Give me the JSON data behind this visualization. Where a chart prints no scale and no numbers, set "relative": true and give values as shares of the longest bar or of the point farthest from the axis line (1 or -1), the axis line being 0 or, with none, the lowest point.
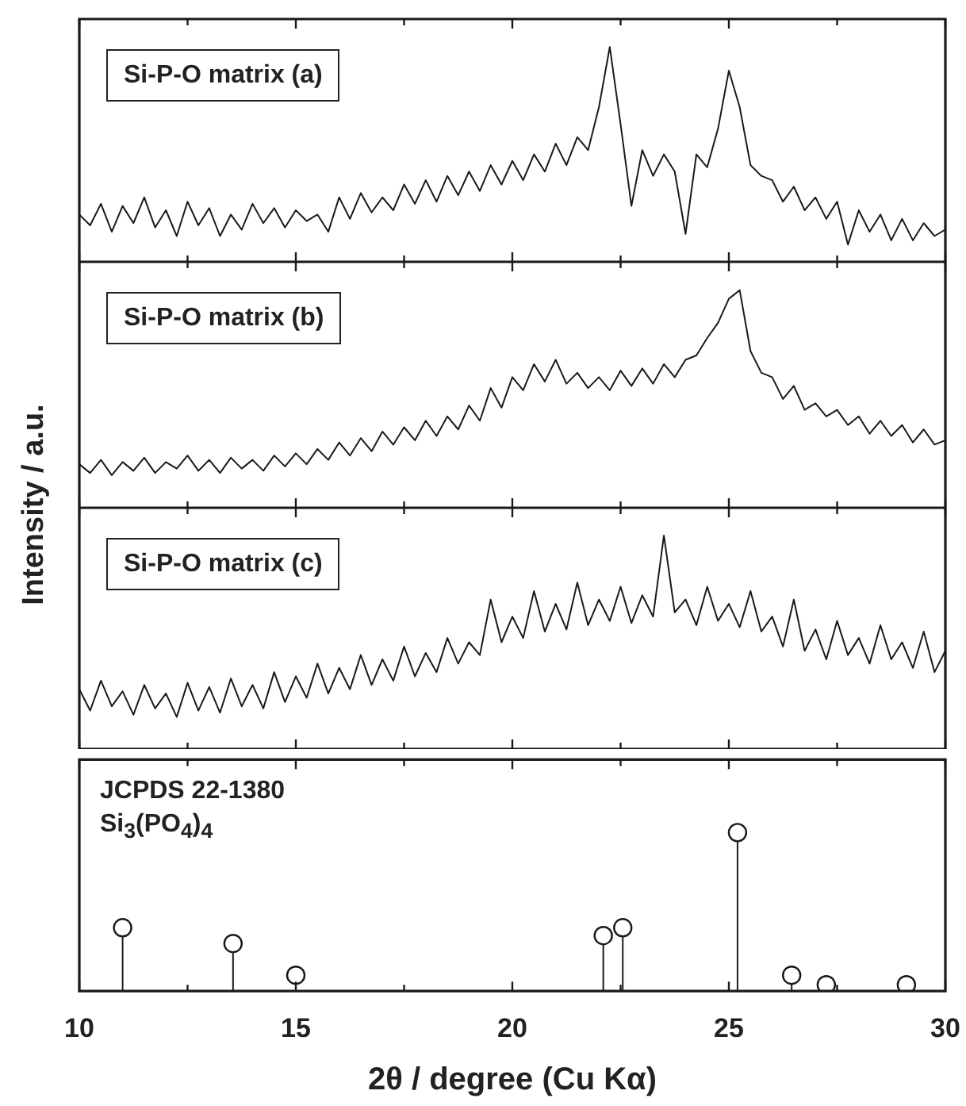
{
  "chart_data": [
    {
      "type": "line",
      "ylabel": "Intensity / a.u.",
      "annotations": [
        "Si-P-O matrix (a)"
      ],
      "relative": true,
      "tick_labels": false,
      "xlim": [
        10,
        30
      ],
      "xticks": [
        10,
        {
          "value": 12.5,
          "label": null
        },
        15,
        {
          "value": 17.5,
          "label": null
        },
        20,
        {
          "value": 22.5,
          "label": null
        },
        25,
        {
          "value": 27.5,
          "label": null
        },
        30
      ],
      "x": [
        10,
        10.25,
        10.5,
        10.75,
        11,
        11.25,
        11.5,
        11.75,
        12,
        12.25,
        12.5,
        12.75,
        13,
        13.25,
        13.5,
        13.75,
        14,
        14.25,
        14.5,
        14.75,
        15,
        15.25,
        15.5,
        15.75,
        16,
        16.25,
        16.5,
        16.75,
        17,
        17.25,
        17.5,
        17.75,
        18,
        18.25,
        18.5,
        18.75,
        19,
        19.25,
        19.5,
        19.75,
        20,
        20.25,
        20.5,
        20.75,
        21,
        21.25,
        21.5,
        21.75,
        22,
        22.25,
        22.5,
        22.75,
        23,
        23.25,
        23.5,
        23.75,
        24,
        24.25,
        24.5,
        24.75,
        25,
        25.25,
        25.5,
        25.75,
        26,
        26.25,
        26.5,
        26.75,
        27,
        27.25,
        27.5,
        27.75,
        28,
        28.25,
        28.5,
        28.75,
        29,
        29.25,
        29.5,
        29.75,
        30
      ],
      "series": [
        {
          "color": "#1a1a1a",
          "values": [
            0.22,
            0.17,
            0.27,
            0.14,
            0.26,
            0.18,
            0.3,
            0.16,
            0.24,
            0.12,
            0.28,
            0.17,
            0.25,
            0.12,
            0.22,
            0.15,
            0.27,
            0.18,
            0.25,
            0.16,
            0.24,
            0.19,
            0.22,
            0.14,
            0.3,
            0.2,
            0.32,
            0.23,
            0.3,
            0.24,
            0.36,
            0.27,
            0.38,
            0.28,
            0.4,
            0.31,
            0.42,
            0.33,
            0.45,
            0.36,
            0.47,
            0.38,
            0.5,
            0.42,
            0.55,
            0.45,
            0.58,
            0.52,
            0.72,
            1.0,
            0.64,
            0.26,
            0.52,
            0.4,
            0.5,
            0.42,
            0.13,
            0.5,
            0.44,
            0.62,
            0.89,
            0.72,
            0.45,
            0.4,
            0.38,
            0.28,
            0.35,
            0.24,
            0.3,
            0.2,
            0.28,
            0.08,
            0.24,
            0.14,
            0.22,
            0.1,
            0.2,
            0.1,
            0.18,
            0.12,
            0.15
          ]
        }
      ]
    },
    {
      "type": "line",
      "annotations": [
        "Si-P-O matrix (b)"
      ],
      "relative": true,
      "tick_labels": false,
      "xlim": [
        10,
        30
      ],
      "xticks": [
        10,
        {
          "value": 12.5,
          "label": null
        },
        15,
        {
          "value": 17.5,
          "label": null
        },
        20,
        {
          "value": 22.5,
          "label": null
        },
        25,
        {
          "value": 27.5,
          "label": null
        },
        30
      ],
      "x": [
        10,
        10.25,
        10.5,
        10.75,
        11,
        11.25,
        11.5,
        11.75,
        12,
        12.25,
        12.5,
        12.75,
        13,
        13.25,
        13.5,
        13.75,
        14,
        14.25,
        14.5,
        14.75,
        15,
        15.25,
        15.5,
        15.75,
        16,
        16.25,
        16.5,
        16.75,
        17,
        17.25,
        17.5,
        17.75,
        18,
        18.25,
        18.5,
        18.75,
        19,
        19.25,
        19.5,
        19.75,
        20,
        20.25,
        20.5,
        20.75,
        21,
        21.25,
        21.5,
        21.75,
        22,
        22.25,
        22.5,
        22.75,
        23,
        23.25,
        23.5,
        23.75,
        24,
        24.25,
        24.5,
        24.75,
        25,
        25.25,
        25.5,
        25.75,
        26,
        26.25,
        26.5,
        26.75,
        27,
        27.25,
        27.5,
        27.75,
        28,
        28.25,
        28.5,
        28.75,
        29,
        29.25,
        29.5,
        29.75,
        30
      ],
      "series": [
        {
          "color": "#1a1a1a",
          "values": [
            0.2,
            0.16,
            0.22,
            0.15,
            0.21,
            0.17,
            0.23,
            0.16,
            0.21,
            0.18,
            0.24,
            0.17,
            0.22,
            0.16,
            0.23,
            0.18,
            0.22,
            0.17,
            0.24,
            0.19,
            0.25,
            0.2,
            0.27,
            0.22,
            0.3,
            0.24,
            0.32,
            0.26,
            0.35,
            0.29,
            0.37,
            0.31,
            0.4,
            0.33,
            0.42,
            0.36,
            0.47,
            0.4,
            0.55,
            0.46,
            0.6,
            0.54,
            0.66,
            0.58,
            0.68,
            0.57,
            0.62,
            0.55,
            0.6,
            0.54,
            0.63,
            0.56,
            0.64,
            0.57,
            0.66,
            0.6,
            0.68,
            0.7,
            0.78,
            0.85,
            0.96,
            1.0,
            0.72,
            0.62,
            0.6,
            0.5,
            0.56,
            0.45,
            0.48,
            0.42,
            0.45,
            0.38,
            0.42,
            0.34,
            0.4,
            0.33,
            0.38,
            0.3,
            0.36,
            0.29,
            0.31
          ]
        }
      ]
    },
    {
      "type": "line",
      "annotations": [
        "Si-P-O matrix (c)"
      ],
      "relative": true,
      "tick_labels": false,
      "xlim": [
        10,
        30
      ],
      "xticks": [
        10,
        {
          "value": 12.5,
          "label": null
        },
        15,
        {
          "value": 17.5,
          "label": null
        },
        20,
        {
          "value": 22.5,
          "label": null
        },
        25,
        {
          "value": 27.5,
          "label": null
        },
        30
      ],
      "x": [
        10,
        10.25,
        10.5,
        10.75,
        11,
        11.25,
        11.5,
        11.75,
        12,
        12.25,
        12.5,
        12.75,
        13,
        13.25,
        13.5,
        13.75,
        14,
        14.25,
        14.5,
        14.75,
        15,
        15.25,
        15.5,
        15.75,
        16,
        16.25,
        16.5,
        16.75,
        17,
        17.25,
        17.5,
        17.75,
        18,
        18.25,
        18.5,
        18.75,
        19,
        19.25,
        19.5,
        19.75,
        20,
        20.25,
        20.5,
        20.75,
        21,
        21.25,
        21.5,
        21.75,
        22,
        22.25,
        22.5,
        22.75,
        23,
        23.25,
        23.5,
        23.75,
        24,
        24.25,
        24.5,
        24.75,
        25,
        25.25,
        25.5,
        25.75,
        26,
        26.25,
        26.5,
        26.75,
        27,
        27.25,
        27.5,
        27.75,
        28,
        28.25,
        28.5,
        28.75,
        29,
        29.25,
        29.5,
        29.75,
        30
      ],
      "series": [
        {
          "color": "#1a1a1a",
          "values": [
            0.28,
            0.18,
            0.32,
            0.2,
            0.27,
            0.16,
            0.3,
            0.19,
            0.26,
            0.15,
            0.31,
            0.18,
            0.29,
            0.17,
            0.33,
            0.2,
            0.3,
            0.19,
            0.36,
            0.22,
            0.34,
            0.24,
            0.4,
            0.26,
            0.38,
            0.28,
            0.44,
            0.3,
            0.42,
            0.32,
            0.48,
            0.34,
            0.45,
            0.36,
            0.52,
            0.4,
            0.5,
            0.44,
            0.7,
            0.5,
            0.62,
            0.52,
            0.74,
            0.55,
            0.68,
            0.56,
            0.78,
            0.58,
            0.7,
            0.6,
            0.76,
            0.59,
            0.72,
            0.62,
            1.0,
            0.64,
            0.7,
            0.58,
            0.76,
            0.6,
            0.68,
            0.57,
            0.74,
            0.55,
            0.62,
            0.48,
            0.7,
            0.46,
            0.56,
            0.42,
            0.6,
            0.44,
            0.52,
            0.4,
            0.58,
            0.42,
            0.5,
            0.38,
            0.55,
            0.36,
            0.46
          ]
        }
      ]
    },
    {
      "type": "lollipop",
      "annotations": [
        "JCPDS 22-1380",
        "Si$_{3}$(PO$_{4}$)$_{4}$"
      ],
      "xlabel": "2θ / degree (Cu Kα)",
      "relative": true,
      "tick_labels": "x",
      "marker": "circle",
      "xlim": [
        10,
        30
      ],
      "xticks": [
        10,
        {
          "value": 12.5,
          "label": null
        },
        15,
        {
          "value": 17.5,
          "label": null
        },
        20,
        {
          "value": 22.5,
          "label": null
        },
        25,
        {
          "value": 27.5,
          "label": null
        },
        30
      ],
      "x": [
        11.0,
        13.55,
        15.0,
        22.1,
        22.55,
        25.2,
        26.45,
        27.25,
        29.1
      ],
      "values": [
        0.4,
        0.3,
        0.1,
        0.35,
        0.4,
        1.0,
        0.1,
        0.04,
        0.04
      ],
      "color": "#1a1a1a"
    }
  ]
}
